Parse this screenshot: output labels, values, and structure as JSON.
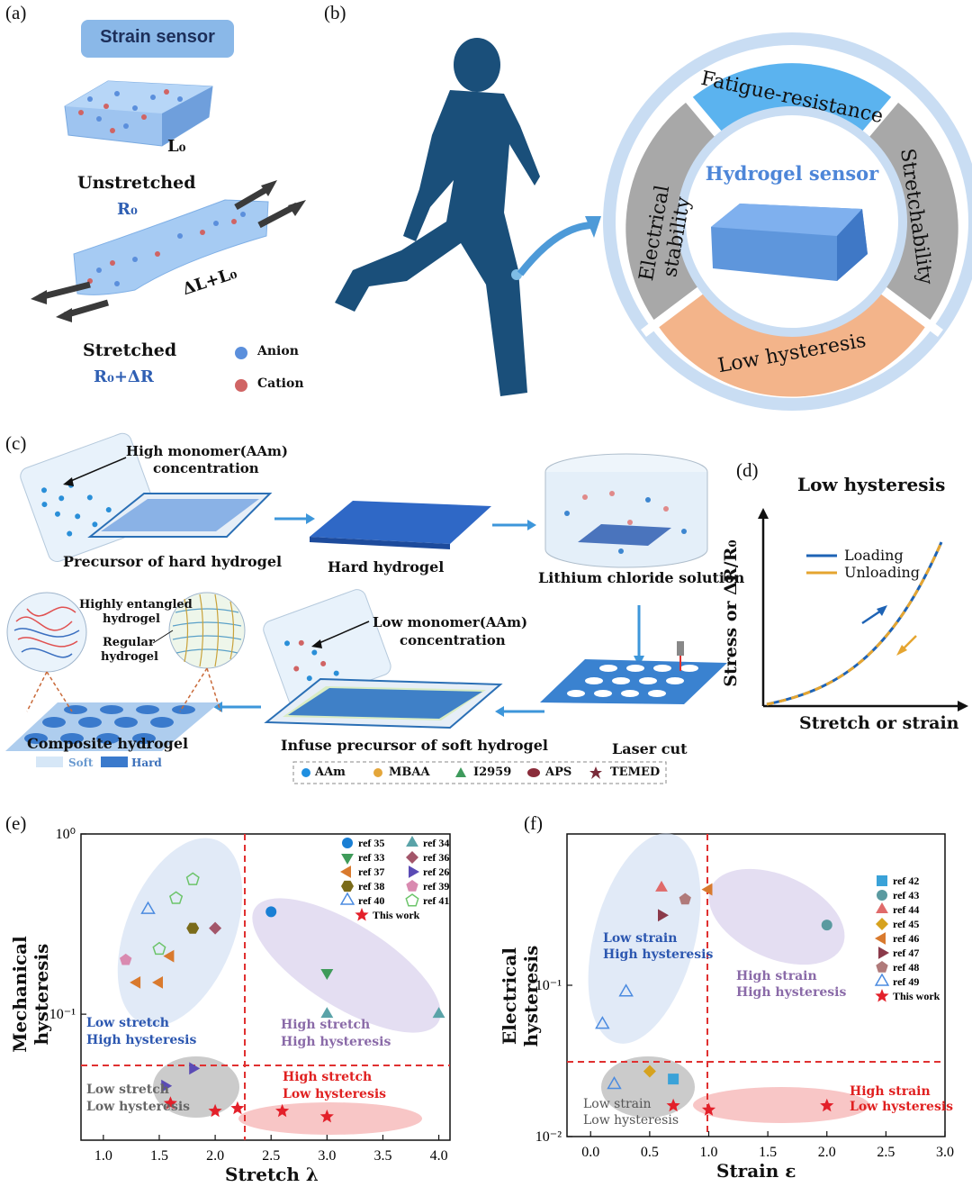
{
  "panel_labels": {
    "a": "(a)",
    "b": "(b)",
    "c": "(c)",
    "d": "(d)",
    "e": "(e)",
    "f": "(f)"
  },
  "panel_a": {
    "title": "Strain sensor",
    "l0": "L₀",
    "unstretched": "Unstretched",
    "r0": "R₀",
    "stretched": "Stretched",
    "delta_l": "ΔL+L₀",
    "r0_dr": "R₀+ΔR",
    "anion": "Anion",
    "cation": "Cation"
  },
  "panel_b": {
    "center": "Hydrogel sensor",
    "top": "Fatigue-resistance",
    "right": "Stretchability",
    "bottom": "Low hysteresis",
    "left": "Electrical stability"
  },
  "panel_c": {
    "high_monomer": "High monomer(AAm)",
    "high_conc": "concentration",
    "precursor_hard": "Precursor of hard hydrogel",
    "hard": "Hard hydrogel",
    "licl": "Lithium chloride solution",
    "laser": "Laser cut",
    "infuse": "Infuse precursor of soft hydrogel",
    "low_monomer": "Low monomer(AAm)",
    "low_conc": "concentration",
    "composite": "Composite hydrogel",
    "entangled1": "Highly entangled",
    "entangled2": "hydrogel",
    "regular1": "Regular",
    "regular2": "hydrogel",
    "soft": "Soft",
    "hard_legend": "Hard",
    "legend": [
      "AAm",
      "MBAA",
      "I2959",
      "APS",
      "TEMED"
    ]
  },
  "panel_d": {
    "title": "Low hysteresis",
    "loading": "Loading",
    "unloading": "Unloading",
    "xlabel": "Stretch or strain",
    "ylabel": "Stress or ΔR/R₀"
  },
  "chart_data": [
    {
      "type": "scatter",
      "id": "e",
      "xlabel": "Stretch λ",
      "ylabel": "Mechanical hysteresis",
      "xlim": [
        0.8,
        4.1
      ],
      "ylim": [
        0.02,
        1.0
      ],
      "yscale": "log",
      "xticks": [
        "1.0",
        "1.5",
        "2.0",
        "2.5",
        "3.0",
        "3.5",
        "4.0"
      ],
      "yticks": [
        "10⁰",
        "10⁻¹"
      ],
      "regions": [
        "Low stretch",
        "High hysteresis",
        "High stretch",
        "High hysteresis",
        "Low stretch",
        "Low hysteresis",
        "High stretch",
        "Low hysteresis"
      ],
      "series": [
        {
          "name": "ref 35",
          "color": "#1a7fd4",
          "marker": "circle",
          "x": [
            2.5
          ],
          "y": [
            0.37
          ]
        },
        {
          "name": "ref 34",
          "color": "#5aa3a8",
          "marker": "triangle-up",
          "x": [
            3.0,
            4.0
          ],
          "y": [
            0.1,
            0.1
          ]
        },
        {
          "name": "ref 33",
          "color": "#3f9b5a",
          "marker": "triangle-down",
          "x": [
            3.0
          ],
          "y": [
            0.17
          ]
        },
        {
          "name": "ref 36",
          "color": "#a3566a",
          "marker": "diamond",
          "x": [
            2.0
          ],
          "y": [
            0.3
          ]
        },
        {
          "name": "ref 37",
          "color": "#d97a2e",
          "marker": "triangle-left",
          "x": [
            1.3,
            1.5,
            1.6
          ],
          "y": [
            0.15,
            0.15,
            0.21
          ]
        },
        {
          "name": "ref 26",
          "color": "#5b4bb5",
          "marker": "triangle-right",
          "x": [
            1.55,
            1.8
          ],
          "y": [
            0.04,
            0.05
          ]
        },
        {
          "name": "ref 38",
          "color": "#7a6b1a",
          "marker": "hexagon",
          "x": [
            1.8
          ],
          "y": [
            0.3
          ]
        },
        {
          "name": "ref 39",
          "color": "#d98ab0",
          "marker": "pentagon",
          "x": [
            1.2
          ],
          "y": [
            0.2
          ]
        },
        {
          "name": "ref 40",
          "color": "#4b8be0",
          "marker": "triangle-open",
          "x": [
            1.4
          ],
          "y": [
            0.38
          ]
        },
        {
          "name": "ref 41",
          "color": "#6cc46a",
          "marker": "pentagon-open",
          "x": [
            1.5,
            1.65,
            1.8
          ],
          "y": [
            0.23,
            0.44,
            0.56
          ]
        },
        {
          "name": "This work",
          "color": "#e3202a",
          "marker": "star",
          "x": [
            1.6,
            2.0,
            2.2,
            2.6,
            3.0
          ],
          "y": [
            0.032,
            0.029,
            0.03,
            0.029,
            0.027
          ]
        }
      ]
    },
    {
      "type": "scatter",
      "id": "f",
      "xlabel": "Strain ε",
      "ylabel": "Electrical hysteresis",
      "xlim": [
        -0.2,
        3.0
      ],
      "ylim": [
        0.01,
        1.0
      ],
      "yscale": "log",
      "xticks": [
        "0.0",
        "0.5",
        "1.0",
        "1.5",
        "2.0",
        "2.5",
        "3.0"
      ],
      "yticks": [
        "10⁻¹",
        "10⁻²"
      ],
      "regions": [
        "Low strain",
        "High hysteresis",
        "High strain",
        "High hysteresis",
        "Low strain",
        "Low hysteresis",
        "High strain",
        "Low hysteresis"
      ],
      "series": [
        {
          "name": "ref 42",
          "color": "#3aa2d8",
          "marker": "square",
          "x": [
            0.7
          ],
          "y": [
            0.024
          ]
        },
        {
          "name": "ref 43",
          "color": "#5a9aa0",
          "marker": "circle",
          "x": [
            2.0
          ],
          "y": [
            0.25
          ]
        },
        {
          "name": "ref 44",
          "color": "#e06a6a",
          "marker": "triangle-up",
          "x": [
            0.6
          ],
          "y": [
            0.44
          ]
        },
        {
          "name": "ref 45",
          "color": "#d6a21e",
          "marker": "diamond",
          "x": [
            0.5
          ],
          "y": [
            0.027
          ]
        },
        {
          "name": "ref 46",
          "color": "#d97a2e",
          "marker": "triangle-left",
          "x": [
            1.0
          ],
          "y": [
            0.43
          ]
        },
        {
          "name": "ref 47",
          "color": "#8b3a4a",
          "marker": "triangle-right",
          "x": [
            0.6
          ],
          "y": [
            0.29
          ]
        },
        {
          "name": "ref 48",
          "color": "#b07a7a",
          "marker": "pentagon",
          "x": [
            0.8
          ],
          "y": [
            0.37
          ]
        },
        {
          "name": "ref 49",
          "color": "#4b8be0",
          "marker": "triangle-open",
          "x": [
            0.1,
            0.3,
            0.2
          ],
          "y": [
            0.055,
            0.09,
            0.022
          ]
        },
        {
          "name": "This work",
          "color": "#e3202a",
          "marker": "star",
          "x": [
            0.7,
            1.0,
            2.0
          ],
          "y": [
            0.016,
            0.015,
            0.016
          ]
        }
      ]
    }
  ]
}
